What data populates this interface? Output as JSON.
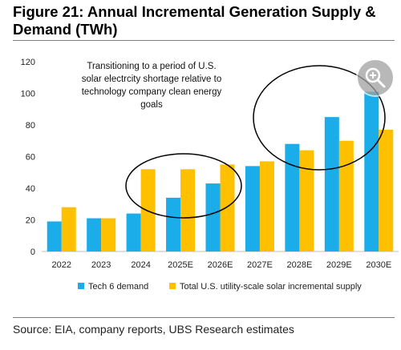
{
  "title": "Figure 21: Annual Incremental Generation Supply & Demand (TWh)",
  "source": "Source: EIA, company reports, UBS Research estimates",
  "annotation_lines": [
    "Transitioning to a period of U.S.",
    "solar electrcity shortage relative to",
    "technology company clean energy",
    "goals"
  ],
  "zoom_button": {
    "icon": "zoom-in-icon"
  },
  "colors": {
    "tech": "#1AADEA",
    "solar": "#FFC000"
  },
  "chart_data": {
    "type": "bar",
    "categories": [
      "2022",
      "2023",
      "2024",
      "2025E",
      "2026E",
      "2027E",
      "2028E",
      "2029E",
      "2030E"
    ],
    "series": [
      {
        "name": "Tech 6 demand",
        "values": [
          19,
          21,
          24,
          34,
          43,
          54,
          68,
          85,
          101
        ]
      },
      {
        "name": "Total U.S. utility-scale solar incremental supply",
        "values": [
          28,
          21,
          52,
          52,
          55,
          57,
          64,
          70,
          77
        ]
      }
    ],
    "ylim": [
      0,
      120
    ],
    "yticks": [
      0,
      20,
      40,
      60,
      80,
      100,
      120
    ],
    "xlabel": "",
    "ylabel": "",
    "grid": false,
    "legend": "bottom"
  }
}
